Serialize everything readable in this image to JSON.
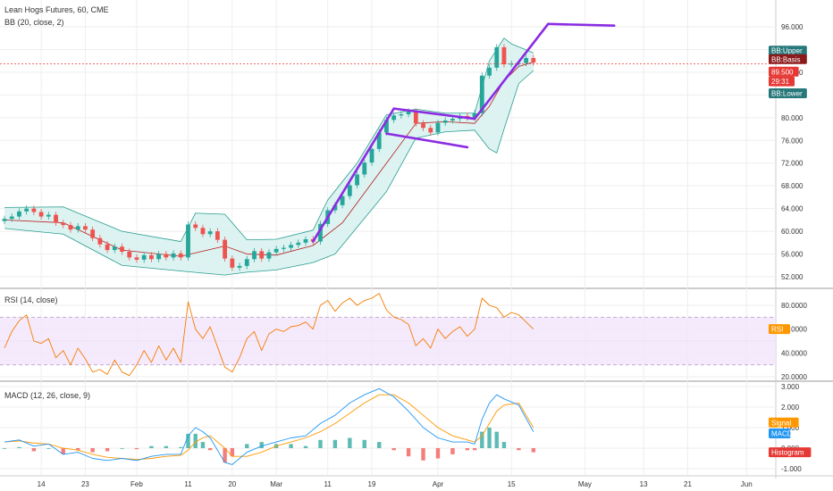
{
  "header": {
    "symbol_line": "Lean Hogs Futures, 60, CME",
    "bb_line": "BB (20, close, 2)",
    "rsi_line": "RSI (14, close)",
    "macd_line": "MACD (12, 26, close, 9)"
  },
  "colors": {
    "grid": "#eeeeee",
    "up": "#26a69a",
    "down": "#ef5350",
    "bb_fill": "#d6f1ee",
    "bb_line": "#2a9d8f",
    "basis": "#b71c1c",
    "trendline": "#8b2be2",
    "rsi_line": "#f57c00",
    "rsi_band": "#f3e5fb",
    "macd_line": "#2196f3",
    "signal_line": "#ff9800",
    "tag_teal": "#26787a",
    "tag_maroon": "#8b1a1a",
    "tag_red": "#e53935",
    "tag_orange": "#ff9800",
    "tag_blue": "#2196f3"
  },
  "chart_data": [
    {
      "type": "line",
      "name": "price",
      "yticks": [
        "96.000",
        "92.000",
        "88.000",
        "84.000",
        "80.000",
        "76.000",
        "72.000",
        "68.000",
        "64.000",
        "60.000",
        "56.000",
        "52.000"
      ],
      "ylim": [
        50.5,
        96.5
      ],
      "xlim": [
        0,
        90
      ],
      "x_labels": [
        {
          "label": "14",
          "x": 5
        },
        {
          "label": "23",
          "x": 11
        },
        {
          "label": "Feb",
          "x": 18
        },
        {
          "label": "11",
          "x": 25
        },
        {
          "label": "20",
          "x": 31
        },
        {
          "label": "Mar",
          "x": 37
        },
        {
          "label": "11",
          "x": 44
        },
        {
          "label": "19",
          "x": 50
        },
        {
          "label": "Apr",
          "x": 59
        },
        {
          "label": "15",
          "x": 69
        },
        {
          "label": "May",
          "x": 79
        },
        {
          "label": "13",
          "x": 87
        },
        {
          "label": "21",
          "x": 93
        },
        {
          "label": "Jun",
          "x": 101
        }
      ],
      "close_points": [
        [
          0,
          62.2
        ],
        [
          1,
          62.6
        ],
        [
          2,
          63.5
        ],
        [
          3,
          64.0
        ],
        [
          4,
          63.4
        ],
        [
          5,
          62.6
        ],
        [
          6,
          62.9
        ],
        [
          7,
          61.5
        ],
        [
          8,
          61.1
        ],
        [
          9,
          60.3
        ],
        [
          10,
          60.9
        ],
        [
          11,
          60.3
        ],
        [
          12,
          58.8
        ],
        [
          13,
          57.7
        ],
        [
          14,
          56.7
        ],
        [
          15,
          57.3
        ],
        [
          16,
          56.4
        ],
        [
          17,
          55.4
        ],
        [
          18,
          55.0
        ],
        [
          19,
          55.8
        ],
        [
          20,
          55.1
        ],
        [
          21,
          56.0
        ],
        [
          22,
          55.4
        ],
        [
          23,
          56.1
        ],
        [
          24,
          55.4
        ],
        [
          25,
          61.2
        ],
        [
          26,
          60.6
        ],
        [
          27,
          59.5
        ],
        [
          28,
          60.0
        ],
        [
          29,
          58.5
        ],
        [
          30,
          55.2
        ],
        [
          31,
          53.6
        ],
        [
          32,
          53.9
        ],
        [
          33,
          55.1
        ],
        [
          34,
          56.5
        ],
        [
          35,
          55.2
        ],
        [
          36,
          56.3
        ],
        [
          37,
          56.9
        ],
        [
          38,
          57.1
        ],
        [
          39,
          57.6
        ],
        [
          40,
          58.0
        ],
        [
          41,
          58.6
        ],
        [
          42,
          58.2
        ],
        [
          43,
          61.3
        ],
        [
          44,
          63.7
        ],
        [
          45,
          64.6
        ],
        [
          46,
          66.2
        ],
        [
          47,
          68.1
        ],
        [
          48,
          70.0
        ],
        [
          49,
          72.1
        ],
        [
          50,
          74.5
        ],
        [
          51,
          77.4
        ],
        [
          52,
          79.6
        ],
        [
          53,
          80.4
        ],
        [
          54,
          80.6
        ],
        [
          55,
          81.1
        ],
        [
          56,
          79.0
        ],
        [
          57,
          78.2
        ],
        [
          58,
          77.4
        ],
        [
          59,
          79.1
        ],
        [
          60,
          79.5
        ],
        [
          61,
          79.8
        ],
        [
          62,
          80.3
        ],
        [
          63,
          80.0
        ],
        [
          64,
          80.8
        ],
        [
          65,
          87.4
        ],
        [
          66,
          88.8
        ],
        [
          67,
          92.4
        ],
        [
          68,
          89.4
        ],
        [
          69,
          89.5
        ],
        [
          70,
          89.6
        ],
        [
          71,
          90.5
        ],
        [
          72,
          89.7
        ]
      ],
      "bb_upper_points": [
        [
          0,
          64.2
        ],
        [
          8,
          64.3
        ],
        [
          16,
          60.0
        ],
        [
          24,
          58.2
        ],
        [
          26,
          63.2
        ],
        [
          30,
          63.0
        ],
        [
          33,
          58.5
        ],
        [
          37,
          58.6
        ],
        [
          42,
          60.2
        ],
        [
          44,
          65.5
        ],
        [
          48,
          72.0
        ],
        [
          52,
          80.5
        ],
        [
          56,
          81.5
        ],
        [
          60,
          80.8
        ],
        [
          64,
          80.8
        ],
        [
          66,
          90.0
        ],
        [
          68,
          94.0
        ],
        [
          69,
          93.0
        ],
        [
          72,
          91.4
        ]
      ],
      "bb_basis_points": [
        [
          0,
          62.0
        ],
        [
          8,
          61.5
        ],
        [
          16,
          56.7
        ],
        [
          24,
          55.6
        ],
        [
          30,
          57.4
        ],
        [
          33,
          56.0
        ],
        [
          37,
          55.8
        ],
        [
          42,
          57.5
        ],
        [
          46,
          61.5
        ],
        [
          52,
          72.0
        ],
        [
          56,
          79.0
        ],
        [
          60,
          79.3
        ],
        [
          64,
          79.0
        ],
        [
          66,
          82.0
        ],
        [
          68,
          86.5
        ],
        [
          70,
          89.0
        ],
        [
          72,
          89.8
        ]
      ],
      "bb_lower_points": [
        [
          0,
          60.5
        ],
        [
          8,
          59.5
        ],
        [
          16,
          54.0
        ],
        [
          24,
          53.0
        ],
        [
          30,
          52.3
        ],
        [
          33,
          52.8
        ],
        [
          37,
          53.2
        ],
        [
          42,
          54.5
        ],
        [
          45,
          56.0
        ],
        [
          52,
          67.0
        ],
        [
          56,
          76.4
        ],
        [
          60,
          77.5
        ],
        [
          64,
          77.8
        ],
        [
          66,
          74.5
        ],
        [
          67,
          73.8
        ],
        [
          68,
          78.0
        ],
        [
          70,
          86.0
        ],
        [
          72,
          88.3
        ]
      ],
      "trend_lines": [
        [
          [
            42,
            58.2
          ],
          [
            53,
            81.6
          ]
        ],
        [
          [
            53,
            81.6
          ],
          [
            64,
            79.8
          ]
        ],
        [
          [
            52,
            77.2
          ],
          [
            63,
            74.8
          ]
        ],
        [
          [
            64,
            79.8
          ],
          [
            74,
            96.5
          ]
        ],
        [
          [
            74,
            96.5
          ],
          [
            83,
            96.2
          ]
        ]
      ],
      "last_price_guide": 89.5,
      "tags": [
        {
          "text": "BB:Upper",
          "y": 91.8,
          "color_key": "tag_teal"
        },
        {
          "text": "BB:Basis",
          "y": 90.3,
          "color_key": "tag_maroon"
        },
        {
          "text": "89.500",
          "y": 88.1,
          "color_key": "tag_red"
        },
        {
          "text": "29:31",
          "y": 86.4,
          "color_key": "tag_red"
        },
        {
          "text": "BB:Lower",
          "y": 84.3,
          "color_key": "tag_teal"
        }
      ]
    },
    {
      "type": "line",
      "name": "rsi",
      "yticks": [
        "80.0000",
        "60.0000",
        "40.0000",
        "20.0000"
      ],
      "ylim": [
        18,
        92
      ],
      "levels": [
        70,
        30
      ],
      "points": [
        [
          0,
          44
        ],
        [
          1,
          58
        ],
        [
          2,
          67
        ],
        [
          3,
          72
        ],
        [
          4,
          50
        ],
        [
          5,
          48
        ],
        [
          6,
          52
        ],
        [
          7,
          36
        ],
        [
          8,
          42
        ],
        [
          9,
          30
        ],
        [
          10,
          44
        ],
        [
          11,
          35
        ],
        [
          12,
          24
        ],
        [
          13,
          26
        ],
        [
          14,
          22
        ],
        [
          15,
          34
        ],
        [
          16,
          24
        ],
        [
          17,
          21
        ],
        [
          18,
          30
        ],
        [
          19,
          42
        ],
        [
          20,
          32
        ],
        [
          21,
          46
        ],
        [
          22,
          34
        ],
        [
          23,
          44
        ],
        [
          24,
          32
        ],
        [
          25,
          83
        ],
        [
          26,
          60
        ],
        [
          27,
          52
        ],
        [
          28,
          62
        ],
        [
          29,
          45
        ],
        [
          30,
          28
        ],
        [
          31,
          24
        ],
        [
          32,
          36
        ],
        [
          33,
          52
        ],
        [
          34,
          58
        ],
        [
          35,
          42
        ],
        [
          36,
          56
        ],
        [
          37,
          60
        ],
        [
          38,
          58
        ],
        [
          39,
          62
        ],
        [
          40,
          63
        ],
        [
          41,
          66
        ],
        [
          42,
          60
        ],
        [
          43,
          80
        ],
        [
          44,
          84
        ],
        [
          45,
          75
        ],
        [
          46,
          82
        ],
        [
          47,
          86
        ],
        [
          48,
          80
        ],
        [
          49,
          84
        ],
        [
          50,
          86
        ],
        [
          51,
          90
        ],
        [
          52,
          76
        ],
        [
          53,
          70
        ],
        [
          54,
          68
        ],
        [
          55,
          64
        ],
        [
          56,
          46
        ],
        [
          57,
          52
        ],
        [
          58,
          44
        ],
        [
          59,
          60
        ],
        [
          60,
          52
        ],
        [
          61,
          58
        ],
        [
          62,
          62
        ],
        [
          63,
          54
        ],
        [
          64,
          60
        ],
        [
          65,
          86
        ],
        [
          66,
          80
        ],
        [
          67,
          78
        ],
        [
          68,
          70
        ],
        [
          69,
          74
        ],
        [
          70,
          72
        ],
        [
          71,
          66
        ],
        [
          72,
          60
        ]
      ],
      "tag": {
        "text": "RSI",
        "y": 60,
        "color_key": "tag_orange"
      }
    },
    {
      "type": "bar",
      "name": "macd",
      "yticks": [
        "3.000",
        "2.000",
        "1.000",
        "0.000",
        "-1.000"
      ],
      "ylim": [
        -1.5,
        3.2
      ],
      "macd_points": [
        [
          0,
          0.3
        ],
        [
          2,
          0.4
        ],
        [
          4,
          0.1
        ],
        [
          6,
          0.2
        ],
        [
          8,
          -0.3
        ],
        [
          10,
          -0.2
        ],
        [
          12,
          -0.5
        ],
        [
          14,
          -0.6
        ],
        [
          16,
          -0.5
        ],
        [
          18,
          -0.6
        ],
        [
          20,
          -0.4
        ],
        [
          22,
          -0.3
        ],
        [
          24,
          -0.3
        ],
        [
          25,
          0.6
        ],
        [
          26,
          1.0
        ],
        [
          27,
          0.8
        ],
        [
          28,
          0.5
        ],
        [
          30,
          -0.7
        ],
        [
          31,
          -0.8
        ],
        [
          33,
          -0.2
        ],
        [
          35,
          0.1
        ],
        [
          37,
          0.3
        ],
        [
          39,
          0.5
        ],
        [
          41,
          0.6
        ],
        [
          43,
          1.2
        ],
        [
          45,
          1.6
        ],
        [
          47,
          2.2
        ],
        [
          49,
          2.6
        ],
        [
          51,
          2.9
        ],
        [
          53,
          2.5
        ],
        [
          55,
          1.8
        ],
        [
          57,
          1.0
        ],
        [
          59,
          0.5
        ],
        [
          61,
          0.3
        ],
        [
          63,
          0.3
        ],
        [
          64,
          0.2
        ],
        [
          65,
          1.4
        ],
        [
          66,
          2.2
        ],
        [
          67,
          2.6
        ],
        [
          68,
          2.4
        ],
        [
          70,
          2.1
        ],
        [
          72,
          0.8
        ]
      ],
      "signal_points": [
        [
          0,
          0.3
        ],
        [
          2,
          0.35
        ],
        [
          4,
          0.25
        ],
        [
          6,
          0.2
        ],
        [
          8,
          0.0
        ],
        [
          10,
          -0.1
        ],
        [
          12,
          -0.3
        ],
        [
          14,
          -0.45
        ],
        [
          16,
          -0.5
        ],
        [
          18,
          -0.55
        ],
        [
          20,
          -0.5
        ],
        [
          22,
          -0.4
        ],
        [
          24,
          -0.35
        ],
        [
          25,
          -0.1
        ],
        [
          26,
          0.3
        ],
        [
          27,
          0.5
        ],
        [
          28,
          0.6
        ],
        [
          30,
          0.0
        ],
        [
          31,
          -0.4
        ],
        [
          33,
          -0.4
        ],
        [
          35,
          -0.2
        ],
        [
          37,
          0.1
        ],
        [
          39,
          0.3
        ],
        [
          41,
          0.5
        ],
        [
          43,
          0.8
        ],
        [
          45,
          1.2
        ],
        [
          47,
          1.7
        ],
        [
          49,
          2.2
        ],
        [
          51,
          2.6
        ],
        [
          53,
          2.6
        ],
        [
          55,
          2.2
        ],
        [
          57,
          1.6
        ],
        [
          59,
          1.0
        ],
        [
          61,
          0.6
        ],
        [
          63,
          0.4
        ],
        [
          64,
          0.3
        ],
        [
          65,
          0.6
        ],
        [
          66,
          1.2
        ],
        [
          67,
          1.8
        ],
        [
          68,
          2.1
        ],
        [
          70,
          2.2
        ],
        [
          72,
          1.0
        ]
      ],
      "tags": [
        {
          "text": "Signal",
          "y": 1.25,
          "color_key": "tag_orange"
        },
        {
          "text": "MACD",
          "y": 0.72,
          "color_key": "tag_blue"
        },
        {
          "text": "Histogram",
          "y": -0.2,
          "color_key": "tag_red"
        }
      ]
    }
  ]
}
